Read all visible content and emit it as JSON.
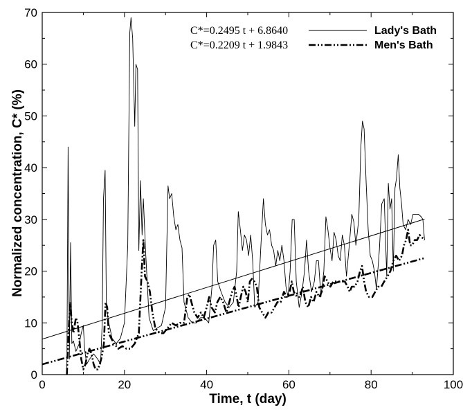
{
  "chart_data": {
    "type": "line",
    "xlabel": "Time, t (day)",
    "ylabel": "Normalized concentration, C* (%)",
    "xlim": [
      0,
      100
    ],
    "ylim": [
      0,
      70
    ],
    "x_ticks": [
      "0",
      "20",
      "40",
      "60",
      "80",
      "100"
    ],
    "y_ticks": [
      "0",
      "10",
      "20",
      "30",
      "40",
      "50",
      "60",
      "70"
    ],
    "grid": false,
    "legend_position": "top-right",
    "colors": {
      "axis": "#000000",
      "series": "#000000"
    },
    "series": [
      {
        "name": "Lady's Bath",
        "style": "solid-thin",
        "points": [
          [
            6.0,
            0
          ],
          [
            6.3,
            44
          ],
          [
            6.6,
            3
          ],
          [
            6.9,
            25.5
          ],
          [
            7.2,
            6
          ],
          [
            7.6,
            6.5
          ],
          [
            8.2,
            4.5
          ],
          [
            9.0,
            6
          ],
          [
            9.5,
            8
          ],
          [
            10.0,
            9.5
          ],
          [
            10.3,
            5
          ],
          [
            10.8,
            2
          ],
          [
            11.5,
            3
          ],
          [
            12.5,
            4
          ],
          [
            13.5,
            3
          ],
          [
            14.2,
            2
          ],
          [
            14.6,
            10
          ],
          [
            14.9,
            34
          ],
          [
            15.3,
            39.5
          ],
          [
            15.6,
            13
          ],
          [
            16.2,
            10
          ],
          [
            17.0,
            7
          ],
          [
            18.0,
            6
          ],
          [
            19.0,
            7
          ],
          [
            20.0,
            10
          ],
          [
            20.8,
            25
          ],
          [
            21.3,
            66
          ],
          [
            21.6,
            69
          ],
          [
            22.0,
            65
          ],
          [
            22.5,
            48
          ],
          [
            22.8,
            60
          ],
          [
            23.2,
            59
          ],
          [
            23.5,
            24
          ],
          [
            23.9,
            37.5
          ],
          [
            24.3,
            27
          ],
          [
            24.6,
            34
          ],
          [
            25.2,
            23
          ],
          [
            26.0,
            11
          ],
          [
            27.0,
            8.5
          ],
          [
            28.0,
            9
          ],
          [
            29.0,
            9.5
          ],
          [
            30.0,
            13
          ],
          [
            30.6,
            36.5
          ],
          [
            31.0,
            34
          ],
          [
            31.5,
            35
          ],
          [
            32.0,
            30.5
          ],
          [
            32.5,
            28
          ],
          [
            33.0,
            29
          ],
          [
            33.5,
            26
          ],
          [
            34.0,
            24.5
          ],
          [
            34.5,
            14
          ],
          [
            35.5,
            11
          ],
          [
            36.5,
            10
          ],
          [
            37.5,
            10
          ],
          [
            38.5,
            11
          ],
          [
            39.5,
            11
          ],
          [
            40.5,
            10
          ],
          [
            41.3,
            17
          ],
          [
            41.7,
            25
          ],
          [
            42.2,
            26
          ],
          [
            42.7,
            18
          ],
          [
            43.5,
            16
          ],
          [
            44.5,
            14
          ],
          [
            45.5,
            13
          ],
          [
            46.5,
            14
          ],
          [
            47.3,
            20
          ],
          [
            47.7,
            31.5
          ],
          [
            48.2,
            28
          ],
          [
            48.7,
            24
          ],
          [
            49.2,
            27
          ],
          [
            49.7,
            26
          ],
          [
            50.2,
            23
          ],
          [
            50.7,
            27
          ],
          [
            51.2,
            22
          ],
          [
            51.7,
            13
          ],
          [
            52.5,
            14
          ],
          [
            53.2,
            25
          ],
          [
            53.8,
            34
          ],
          [
            54.3,
            29
          ],
          [
            54.8,
            27
          ],
          [
            55.3,
            28
          ],
          [
            55.8,
            25
          ],
          [
            56.3,
            24
          ],
          [
            56.8,
            21
          ],
          [
            57.3,
            24
          ],
          [
            57.8,
            22
          ],
          [
            58.3,
            25
          ],
          [
            58.8,
            22
          ],
          [
            59.3,
            17
          ],
          [
            59.8,
            15
          ],
          [
            60.3,
            20
          ],
          [
            60.8,
            30
          ],
          [
            61.3,
            30
          ],
          [
            61.8,
            18
          ],
          [
            62.5,
            13
          ],
          [
            63.2,
            16
          ],
          [
            63.8,
            20
          ],
          [
            64.3,
            26
          ],
          [
            64.8,
            20
          ],
          [
            65.5,
            16
          ],
          [
            66.2,
            18
          ],
          [
            66.7,
            22
          ],
          [
            67.2,
            22
          ],
          [
            67.8,
            15
          ],
          [
            68.5,
            20
          ],
          [
            69.0,
            30.5
          ],
          [
            69.5,
            28
          ],
          [
            70.0,
            24.5
          ],
          [
            70.5,
            22
          ],
          [
            71.0,
            27.5
          ],
          [
            71.5,
            26
          ],
          [
            72.0,
            23
          ],
          [
            72.5,
            22
          ],
          [
            73.0,
            27
          ],
          [
            73.5,
            25
          ],
          [
            74.0,
            19
          ],
          [
            74.7,
            25
          ],
          [
            75.3,
            31
          ],
          [
            75.8,
            29.5
          ],
          [
            76.3,
            25
          ],
          [
            77.0,
            30
          ],
          [
            77.5,
            44
          ],
          [
            77.9,
            49
          ],
          [
            78.3,
            47.5
          ],
          [
            78.8,
            37
          ],
          [
            79.3,
            28
          ],
          [
            79.8,
            23
          ],
          [
            80.3,
            22
          ],
          [
            80.8,
            20
          ],
          [
            81.3,
            16.5
          ],
          [
            82.0,
            24
          ],
          [
            82.6,
            33
          ],
          [
            83.2,
            34
          ],
          [
            83.8,
            19
          ],
          [
            84.2,
            37
          ],
          [
            84.6,
            32
          ],
          [
            85.0,
            34
          ],
          [
            85.4,
            20
          ],
          [
            85.8,
            36
          ],
          [
            86.2,
            38
          ],
          [
            86.6,
            42.5
          ],
          [
            87.0,
            36
          ],
          [
            87.4,
            33
          ],
          [
            87.8,
            29
          ],
          [
            88.4,
            28
          ],
          [
            89.0,
            30
          ],
          [
            89.6,
            29
          ],
          [
            90.2,
            31
          ],
          [
            90.8,
            31
          ],
          [
            91.5,
            31
          ],
          [
            92.2,
            30.5
          ],
          [
            92.6,
            30
          ],
          [
            93.0,
            26
          ]
        ]
      },
      {
        "name": "Men's Bath",
        "style": "dash-dot-thick",
        "points": [
          [
            6.0,
            0
          ],
          [
            6.4,
            8
          ],
          [
            6.8,
            14
          ],
          [
            7.2,
            10
          ],
          [
            7.6,
            8
          ],
          [
            8.2,
            11
          ],
          [
            8.6,
            10
          ],
          [
            9.0,
            7
          ],
          [
            9.5,
            3
          ],
          [
            10.0,
            1
          ],
          [
            10.5,
            2
          ],
          [
            11.0,
            4
          ],
          [
            11.5,
            5
          ],
          [
            12.0,
            4
          ],
          [
            12.5,
            2
          ],
          [
            13.0,
            1
          ],
          [
            13.5,
            1
          ],
          [
            14.0,
            2
          ],
          [
            14.5,
            3.5
          ],
          [
            15.0,
            6
          ],
          [
            15.4,
            14
          ],
          [
            15.8,
            13
          ],
          [
            16.2,
            8
          ],
          [
            16.8,
            7
          ],
          [
            17.5,
            6
          ],
          [
            18.5,
            5
          ],
          [
            19.5,
            5.5
          ],
          [
            20.5,
            5
          ],
          [
            21.5,
            5
          ],
          [
            22.5,
            6
          ],
          [
            23.5,
            8
          ],
          [
            24.2,
            20
          ],
          [
            24.6,
            26
          ],
          [
            25.0,
            19
          ],
          [
            25.6,
            18
          ],
          [
            26.2,
            16
          ],
          [
            26.8,
            12
          ],
          [
            27.5,
            9
          ],
          [
            28.5,
            8
          ],
          [
            29.5,
            8
          ],
          [
            30.5,
            9
          ],
          [
            31.5,
            10
          ],
          [
            32.5,
            9.5
          ],
          [
            33.5,
            10
          ],
          [
            34.5,
            10
          ],
          [
            35.3,
            15
          ],
          [
            35.8,
            15.5
          ],
          [
            36.3,
            14
          ],
          [
            37.0,
            12
          ],
          [
            37.8,
            11
          ],
          [
            38.6,
            12
          ],
          [
            39.3,
            11
          ],
          [
            40.0,
            13
          ],
          [
            40.6,
            15
          ],
          [
            41.2,
            13
          ],
          [
            42.0,
            12
          ],
          [
            42.6,
            14
          ],
          [
            43.3,
            15
          ],
          [
            44.0,
            14
          ],
          [
            44.8,
            12
          ],
          [
            45.5,
            14
          ],
          [
            46.2,
            16
          ],
          [
            46.8,
            17
          ],
          [
            47.3,
            15
          ],
          [
            47.8,
            13
          ],
          [
            48.3,
            15
          ],
          [
            48.9,
            17
          ],
          [
            49.5,
            16
          ],
          [
            50.0,
            14
          ],
          [
            50.5,
            18
          ],
          [
            51.0,
            18.5
          ],
          [
            51.6,
            18
          ],
          [
            52.2,
            17
          ],
          [
            52.8,
            13
          ],
          [
            53.5,
            12
          ],
          [
            54.3,
            11
          ],
          [
            55.0,
            12
          ],
          [
            55.8,
            12
          ],
          [
            56.5,
            13
          ],
          [
            57.2,
            14
          ],
          [
            58.0,
            14
          ],
          [
            58.8,
            16
          ],
          [
            59.5,
            15
          ],
          [
            60.2,
            16
          ],
          [
            60.7,
            18
          ],
          [
            61.2,
            16
          ],
          [
            62.0,
            15
          ],
          [
            62.7,
            15
          ],
          [
            63.4,
            17
          ],
          [
            64.0,
            14
          ],
          [
            64.7,
            13
          ],
          [
            65.4,
            15
          ],
          [
            66.0,
            14
          ],
          [
            66.7,
            16
          ],
          [
            67.4,
            15
          ],
          [
            68.0,
            16
          ],
          [
            68.7,
            19
          ],
          [
            69.4,
            18
          ],
          [
            70.1,
            17
          ],
          [
            70.8,
            18
          ],
          [
            71.5,
            18
          ],
          [
            72.2,
            18
          ],
          [
            72.9,
            18
          ],
          [
            73.6,
            18
          ],
          [
            74.3,
            17
          ],
          [
            74.8,
            16
          ],
          [
            75.3,
            17
          ],
          [
            76.0,
            17
          ],
          [
            76.7,
            18
          ],
          [
            77.3,
            20
          ],
          [
            77.8,
            21
          ],
          [
            78.3,
            18
          ],
          [
            78.8,
            16
          ],
          [
            79.5,
            15
          ],
          [
            80.3,
            15
          ],
          [
            81.0,
            16
          ],
          [
            81.7,
            17
          ],
          [
            82.5,
            17
          ],
          [
            83.2,
            18
          ],
          [
            84.0,
            19
          ],
          [
            84.7,
            20
          ],
          [
            85.4,
            22
          ],
          [
            86.1,
            23
          ],
          [
            86.8,
            22
          ],
          [
            87.5,
            23
          ],
          [
            88.0,
            25
          ],
          [
            88.5,
            26
          ],
          [
            89.0,
            28
          ],
          [
            89.5,
            25
          ],
          [
            90.0,
            25
          ],
          [
            90.6,
            26
          ],
          [
            91.2,
            26
          ],
          [
            91.8,
            27
          ],
          [
            92.4,
            26.5
          ],
          [
            93.0,
            26
          ]
        ]
      }
    ],
    "trendlines": [
      {
        "equation": "C*=0.2495 t + 6.8640",
        "slope": 0.2495,
        "intercept": 6.864,
        "x_range": [
          0,
          93
        ],
        "series": "Lady's Bath"
      },
      {
        "equation": "C*=0.2209 t + 1.9843",
        "slope": 0.2209,
        "intercept": 1.9843,
        "x_range": [
          0,
          93
        ],
        "series": "Men's Bath"
      }
    ]
  }
}
